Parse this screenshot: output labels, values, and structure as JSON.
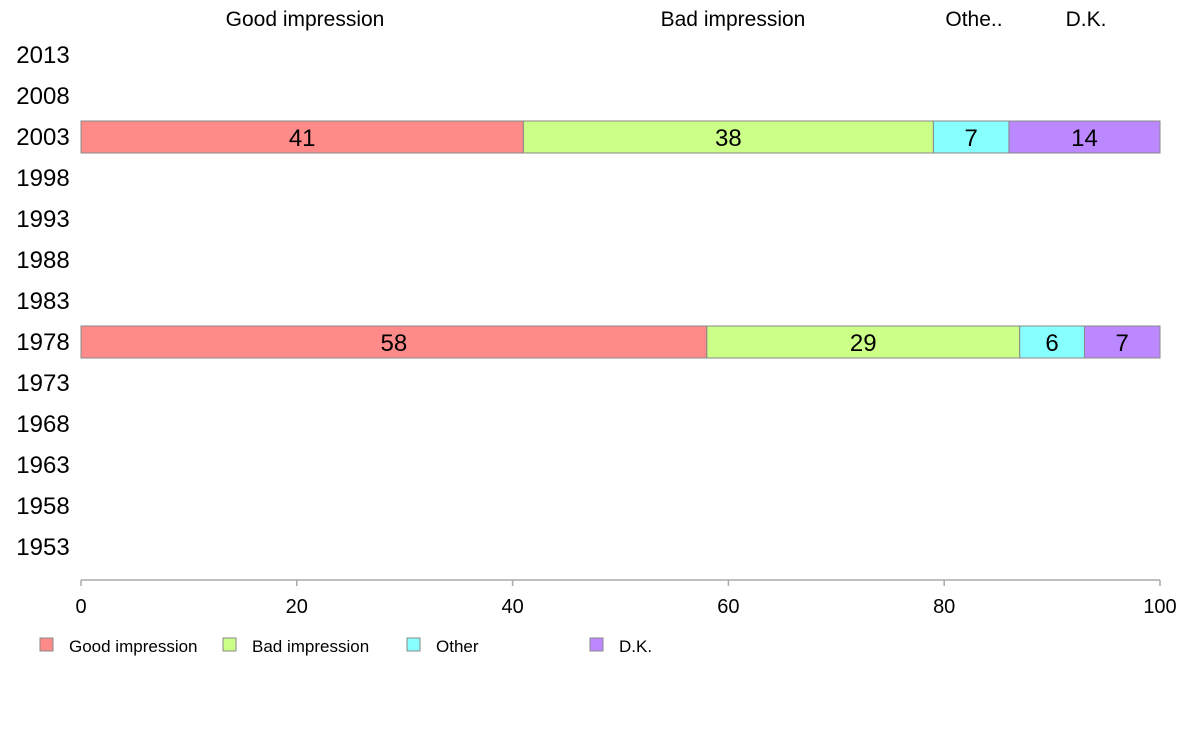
{
  "chart_data": {
    "type": "bar",
    "orientation": "horizontal",
    "stacked": true,
    "categories": [
      "2013",
      "2008",
      "2003",
      "1998",
      "1993",
      "1988",
      "1983",
      "1978",
      "1973",
      "1968",
      "1963",
      "1958",
      "1953"
    ],
    "series": [
      {
        "name": "Good impression",
        "color": "#ff8a8a",
        "values": [
          null,
          null,
          41,
          null,
          null,
          null,
          null,
          58,
          null,
          null,
          null,
          null,
          null
        ]
      },
      {
        "name": "Bad impression",
        "color": "#ccff88",
        "values": [
          null,
          null,
          38,
          null,
          null,
          null,
          null,
          29,
          null,
          null,
          null,
          null,
          null
        ]
      },
      {
        "name": "Other",
        "color": "#88ffff",
        "values": [
          null,
          null,
          7,
          null,
          null,
          null,
          null,
          6,
          null,
          null,
          null,
          null,
          null
        ]
      },
      {
        "name": "D.K.",
        "color": "#bb88ff",
        "values": [
          null,
          null,
          14,
          null,
          null,
          null,
          null,
          7,
          null,
          null,
          null,
          null,
          null
        ]
      }
    ],
    "column_headers": [
      "Good impression",
      "Bad impression",
      "Othe..",
      "D.K."
    ],
    "xlim": [
      0,
      100
    ],
    "xticks": [
      0,
      20,
      40,
      60,
      80,
      100
    ],
    "grid": false,
    "legend": "bottom"
  }
}
